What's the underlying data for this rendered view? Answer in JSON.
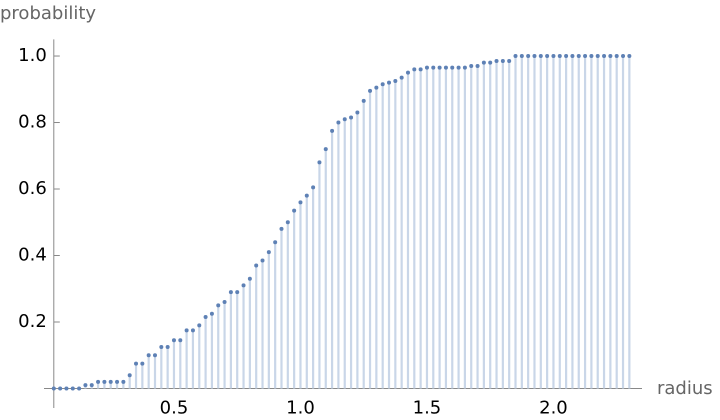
{
  "chart_data": {
    "type": "discrete",
    "x_label": "radius",
    "y_label": "probability",
    "x": [
      0.025,
      0.05,
      0.075,
      0.1,
      0.125,
      0.15,
      0.175,
      0.2,
      0.225,
      0.25,
      0.275,
      0.3,
      0.325,
      0.35,
      0.375,
      0.4,
      0.425,
      0.45,
      0.475,
      0.5,
      0.525,
      0.55,
      0.575,
      0.6,
      0.625,
      0.65,
      0.675,
      0.7,
      0.725,
      0.75,
      0.775,
      0.8,
      0.825,
      0.85,
      0.875,
      0.9,
      0.925,
      0.95,
      0.975,
      1.0,
      1.025,
      1.05,
      1.075,
      1.1,
      1.125,
      1.15,
      1.175,
      1.2,
      1.225,
      1.25,
      1.275,
      1.3,
      1.325,
      1.35,
      1.375,
      1.4,
      1.425,
      1.45,
      1.475,
      1.5,
      1.525,
      1.55,
      1.575,
      1.6,
      1.625,
      1.65,
      1.675,
      1.7,
      1.725,
      1.75,
      1.775,
      1.8,
      1.825,
      1.85,
      1.875,
      1.9,
      1.925,
      1.95,
      1.975,
      2.0,
      2.025,
      2.05,
      2.075,
      2.1,
      2.125,
      2.15,
      2.175,
      2.2,
      2.225,
      2.25,
      2.275,
      2.3
    ],
    "values": [
      0,
      0,
      0,
      0,
      0,
      0.01,
      0.01,
      0.02,
      0.02,
      0.02,
      0.02,
      0.02,
      0.04,
      0.075,
      0.075,
      0.1,
      0.1,
      0.125,
      0.125,
      0.145,
      0.145,
      0.175,
      0.175,
      0.19,
      0.215,
      0.225,
      0.25,
      0.26,
      0.29,
      0.29,
      0.31,
      0.33,
      0.37,
      0.385,
      0.41,
      0.44,
      0.48,
      0.5,
      0.535,
      0.56,
      0.58,
      0.605,
      0.68,
      0.72,
      0.775,
      0.8,
      0.81,
      0.815,
      0.83,
      0.865,
      0.895,
      0.905,
      0.915,
      0.92,
      0.925,
      0.935,
      0.95,
      0.96,
      0.96,
      0.965,
      0.965,
      0.965,
      0.965,
      0.965,
      0.965,
      0.965,
      0.97,
      0.97,
      0.98,
      0.98,
      0.985,
      0.985,
      0.985,
      1,
      1,
      1,
      1,
      1,
      1,
      1,
      1,
      1,
      1,
      1,
      1,
      1,
      1,
      1,
      1,
      1,
      1,
      1
    ],
    "color": "#5e81b5",
    "stem_color": "#c9d6e8",
    "xlim": [
      0.025,
      2.35
    ],
    "ylim": [
      0,
      1.05
    ],
    "xticks": [
      0.5,
      {
        "value": 1,
        "label": "1.0"
      },
      1.5,
      {
        "value": 2,
        "label": "2.0"
      }
    ],
    "yticks": [
      0.2,
      0.4,
      0.6,
      0.8,
      {
        "value": 1,
        "label": "1.0"
      }
    ]
  }
}
